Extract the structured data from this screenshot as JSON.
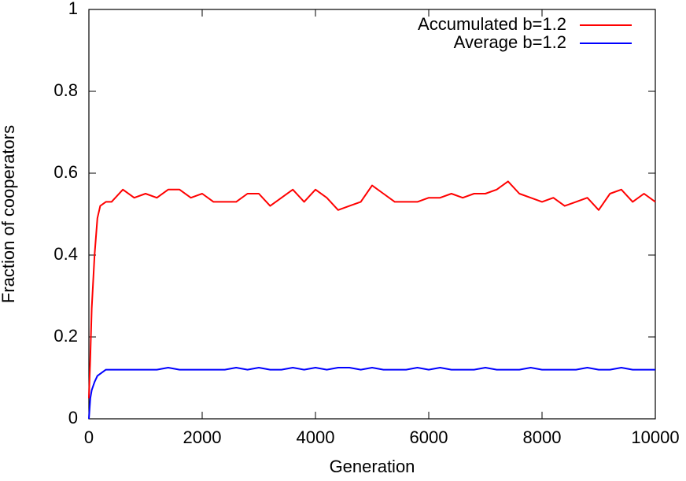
{
  "chart_data": {
    "type": "line",
    "xlabel": "Generation",
    "ylabel": "Fraction of cooperators",
    "x": [
      0,
      25,
      50,
      100,
      150,
      200,
      300,
      400,
      600,
      800,
      1000,
      1200,
      1400,
      1600,
      1800,
      2000,
      2200,
      2400,
      2600,
      2800,
      3000,
      3200,
      3400,
      3600,
      3800,
      4000,
      4200,
      4400,
      4600,
      4800,
      5000,
      5200,
      5400,
      5600,
      5800,
      6000,
      6200,
      6400,
      6600,
      6800,
      7000,
      7200,
      7400,
      7600,
      7800,
      8000,
      8200,
      8400,
      8600,
      8800,
      9000,
      9200,
      9400,
      9600,
      9800,
      10000
    ],
    "series": [
      {
        "name": "Accumulated b=1.2",
        "color": "#ff0000",
        "values": [
          0.05,
          0.15,
          0.27,
          0.4,
          0.49,
          0.52,
          0.53,
          0.53,
          0.56,
          0.54,
          0.55,
          0.54,
          0.56,
          0.56,
          0.54,
          0.55,
          0.53,
          0.53,
          0.53,
          0.55,
          0.55,
          0.52,
          0.54,
          0.56,
          0.53,
          0.56,
          0.54,
          0.51,
          0.52,
          0.53,
          0.57,
          0.55,
          0.53,
          0.53,
          0.53,
          0.54,
          0.54,
          0.55,
          0.54,
          0.55,
          0.55,
          0.56,
          0.58,
          0.55,
          0.54,
          0.53,
          0.54,
          0.52,
          0.53,
          0.54,
          0.51,
          0.55,
          0.56,
          0.53,
          0.55,
          0.53
        ]
      },
      {
        "name": "Average b=1.2",
        "color": "#0000ff",
        "values": [
          0,
          0.05,
          0.07,
          0.09,
          0.105,
          0.11,
          0.12,
          0.12,
          0.12,
          0.12,
          0.12,
          0.12,
          0.125,
          0.12,
          0.12,
          0.12,
          0.12,
          0.12,
          0.125,
          0.12,
          0.125,
          0.12,
          0.12,
          0.125,
          0.12,
          0.125,
          0.12,
          0.125,
          0.125,
          0.12,
          0.125,
          0.12,
          0.12,
          0.12,
          0.125,
          0.12,
          0.125,
          0.12,
          0.12,
          0.12,
          0.125,
          0.12,
          0.12,
          0.12,
          0.125,
          0.12,
          0.12,
          0.12,
          0.12,
          0.125,
          0.12,
          0.12,
          0.125,
          0.12,
          0.12,
          0.12
        ]
      }
    ],
    "xlim": [
      0,
      10000
    ],
    "xticks": [
      0,
      2000,
      4000,
      6000,
      8000,
      10000
    ],
    "ylim": [
      0,
      1
    ],
    "yticks": [
      0,
      0.2,
      0.4,
      0.6,
      0.8,
      1
    ],
    "legend": "upper right"
  }
}
